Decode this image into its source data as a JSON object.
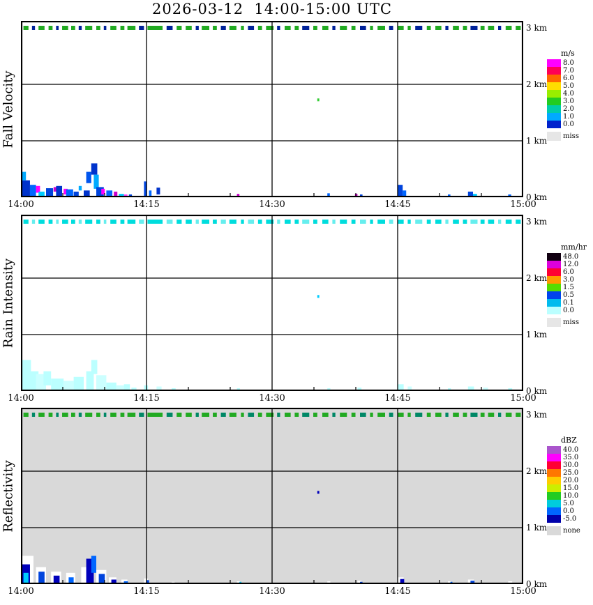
{
  "title": "2026-03-12  14:00-15:00 UTC",
  "axes": {
    "xticks": [
      "14:00",
      "14:15",
      "14:30",
      "14:45",
      "15:00"
    ],
    "yticks": [
      "0 km",
      "1 km",
      "2 km",
      "3 km"
    ],
    "x_range_minutes": 60,
    "y_range_km": [
      0,
      3.12
    ],
    "grid": true
  },
  "strip_segments": [
    [
      0.005,
      0.01,
      0
    ],
    [
      0.022,
      0.006,
      1
    ],
    [
      0.035,
      0.012,
      0
    ],
    [
      0.055,
      0.008,
      0
    ],
    [
      0.07,
      0.005,
      1
    ],
    [
      0.082,
      0.012,
      0
    ],
    [
      0.1,
      0.008,
      0
    ],
    [
      0.115,
      0.006,
      1
    ],
    [
      0.128,
      0.014,
      0
    ],
    [
      0.15,
      0.008,
      0
    ],
    [
      0.165,
      0.005,
      1
    ],
    [
      0.178,
      0.012,
      0
    ],
    [
      0.198,
      0.008,
      0
    ],
    [
      0.212,
      0.016,
      0
    ],
    [
      0.235,
      0.01,
      1
    ],
    [
      0.252,
      0.03,
      0
    ],
    [
      0.29,
      0.012,
      1
    ],
    [
      0.31,
      0.01,
      0
    ],
    [
      0.328,
      0.012,
      0
    ],
    [
      0.348,
      0.006,
      1
    ],
    [
      0.36,
      0.015,
      0
    ],
    [
      0.382,
      0.008,
      0
    ],
    [
      0.398,
      0.01,
      1
    ],
    [
      0.415,
      0.014,
      0
    ],
    [
      0.438,
      0.006,
      0
    ],
    [
      0.452,
      0.012,
      1
    ],
    [
      0.472,
      0.008,
      0
    ],
    [
      0.488,
      0.015,
      0
    ],
    [
      0.51,
      0.006,
      1
    ],
    [
      0.525,
      0.012,
      0
    ],
    [
      0.545,
      0.008,
      0
    ],
    [
      0.56,
      0.014,
      1
    ],
    [
      0.582,
      0.008,
      0
    ],
    [
      0.6,
      0.012,
      0
    ],
    [
      0.62,
      0.006,
      1
    ],
    [
      0.635,
      0.014,
      0
    ],
    [
      0.658,
      0.008,
      0
    ],
    [
      0.675,
      0.012,
      1
    ],
    [
      0.695,
      0.006,
      0
    ],
    [
      0.71,
      0.015,
      0
    ],
    [
      0.733,
      0.008,
      1
    ],
    [
      0.75,
      0.012,
      0
    ],
    [
      0.77,
      0.006,
      0
    ],
    [
      0.785,
      0.014,
      1
    ],
    [
      0.808,
      0.008,
      0
    ],
    [
      0.825,
      0.012,
      0
    ],
    [
      0.845,
      0.006,
      1
    ],
    [
      0.86,
      0.012,
      0
    ],
    [
      0.88,
      0.008,
      0
    ],
    [
      0.895,
      0.014,
      1
    ],
    [
      0.915,
      0.008,
      0
    ],
    [
      0.93,
      0.012,
      0
    ],
    [
      0.95,
      0.006,
      1
    ],
    [
      0.965,
      0.012,
      0
    ],
    [
      0.985,
      0.01,
      0
    ]
  ],
  "chart_data": [
    {
      "type": "heatmap",
      "ylabel": "Fall Velocity",
      "legend_unit": "m/s",
      "legend_position": "right",
      "legend": [
        {
          "label": "8.0",
          "color": "#ff00ff"
        },
        {
          "label": "7.0",
          "color": "#ff0055"
        },
        {
          "label": "6.0",
          "color": "#ff6600"
        },
        {
          "label": "5.0",
          "color": "#ffdd00"
        },
        {
          "label": "4.0",
          "color": "#99ee00"
        },
        {
          "label": "3.0",
          "color": "#22cc22"
        },
        {
          "label": "2.0",
          "color": "#00ccaa"
        },
        {
          "label": "1.0",
          "color": "#00aaff"
        },
        {
          "label": "0.0",
          "color": "#0022cc"
        }
      ],
      "missing": {
        "label": "miss",
        "color": "#e6e6e6"
      },
      "background": "#ffffff",
      "strip_km": 3.0,
      "strip_colors": [
        "#22aa22",
        "#002299"
      ],
      "encoding": {
        "t": "fraction of 14:00-15:00",
        "h": "base height km",
        "w": "width fraction",
        "dh": "depth km",
        "c": "color"
      },
      "echoes": [
        {
          "t": 0.0,
          "h": 0.0,
          "w": 0.018,
          "dh": 0.3,
          "c": "#0033cc"
        },
        {
          "t": 0.0,
          "h": 0.3,
          "w": 0.01,
          "dh": 0.15,
          "c": "#00aaff"
        },
        {
          "t": 0.018,
          "h": 0.0,
          "w": 0.012,
          "dh": 0.22,
          "c": "#0066ff"
        },
        {
          "t": 0.03,
          "h": 0.08,
          "w": 0.008,
          "dh": 0.12,
          "c": "#ff00ff"
        },
        {
          "t": 0.035,
          "h": 0.0,
          "w": 0.012,
          "dh": 0.1,
          "c": "#00ccff"
        },
        {
          "t": 0.05,
          "h": 0.0,
          "w": 0.014,
          "dh": 0.16,
          "c": "#0044dd"
        },
        {
          "t": 0.065,
          "h": 0.1,
          "w": 0.006,
          "dh": 0.08,
          "c": "#cc00cc"
        },
        {
          "t": 0.07,
          "h": 0.0,
          "w": 0.012,
          "dh": 0.2,
          "c": "#0033cc"
        },
        {
          "t": 0.085,
          "h": 0.05,
          "w": 0.008,
          "dh": 0.1,
          "c": "#ff00ff"
        },
        {
          "t": 0.09,
          "h": 0.0,
          "w": 0.014,
          "dh": 0.14,
          "c": "#0066ff"
        },
        {
          "t": 0.105,
          "h": 0.0,
          "w": 0.01,
          "dh": 0.1,
          "c": "#0044dd"
        },
        {
          "t": 0.115,
          "h": 0.12,
          "w": 0.006,
          "dh": 0.08,
          "c": "#00aaff"
        },
        {
          "t": 0.125,
          "h": 0.0,
          "w": 0.012,
          "dh": 0.12,
          "c": "#0033cc"
        },
        {
          "t": 0.13,
          "h": 0.25,
          "w": 0.01,
          "dh": 0.2,
          "c": "#0055ee"
        },
        {
          "t": 0.14,
          "h": 0.4,
          "w": 0.012,
          "dh": 0.2,
          "c": "#0033cc"
        },
        {
          "t": 0.145,
          "h": 0.15,
          "w": 0.01,
          "dh": 0.25,
          "c": "#00aaff"
        },
        {
          "t": 0.15,
          "h": 0.0,
          "w": 0.015,
          "dh": 0.18,
          "c": "#0044dd"
        },
        {
          "t": 0.16,
          "h": 0.05,
          "w": 0.007,
          "dh": 0.1,
          "c": "#ff00ff"
        },
        {
          "t": 0.17,
          "h": 0.0,
          "w": 0.012,
          "dh": 0.12,
          "c": "#0066ff"
        },
        {
          "t": 0.185,
          "h": 0.02,
          "w": 0.007,
          "dh": 0.08,
          "c": "#cc00cc"
        },
        {
          "t": 0.195,
          "h": 0.0,
          "w": 0.01,
          "dh": 0.06,
          "c": "#00ccff"
        },
        {
          "t": 0.205,
          "h": 0.0,
          "w": 0.007,
          "dh": 0.05,
          "c": "#ff44ff"
        },
        {
          "t": 0.215,
          "h": 0.0,
          "w": 0.006,
          "dh": 0.05,
          "c": "#0044dd"
        },
        {
          "t": 0.245,
          "h": 0.0,
          "w": 0.006,
          "dh": 0.28,
          "c": "#0044dd"
        },
        {
          "t": 0.255,
          "h": 0.0,
          "w": 0.005,
          "dh": 0.12,
          "c": "#0066ff"
        },
        {
          "t": 0.27,
          "h": 0.05,
          "w": 0.007,
          "dh": 0.12,
          "c": "#0033cc"
        },
        {
          "t": 0.43,
          "h": 0.0,
          "w": 0.005,
          "dh": 0.06,
          "c": "#cc00cc"
        },
        {
          "t": 0.59,
          "h": 1.7,
          "w": 0.004,
          "dh": 0.05,
          "c": "#33cc33"
        },
        {
          "t": 0.61,
          "h": 0.02,
          "w": 0.005,
          "dh": 0.05,
          "c": "#0066ff"
        },
        {
          "t": 0.665,
          "h": 0.0,
          "w": 0.005,
          "dh": 0.06,
          "c": "#cc00cc"
        },
        {
          "t": 0.675,
          "h": 0.0,
          "w": 0.005,
          "dh": 0.05,
          "c": "#0044dd"
        },
        {
          "t": 0.75,
          "h": 0.0,
          "w": 0.01,
          "dh": 0.22,
          "c": "#0044dd"
        },
        {
          "t": 0.76,
          "h": 0.0,
          "w": 0.007,
          "dh": 0.12,
          "c": "#0066ff"
        },
        {
          "t": 0.85,
          "h": 0.0,
          "w": 0.005,
          "dh": 0.05,
          "c": "#0066ff"
        },
        {
          "t": 0.89,
          "h": 0.0,
          "w": 0.01,
          "dh": 0.1,
          "c": "#0044dd"
        },
        {
          "t": 0.9,
          "h": 0.0,
          "w": 0.008,
          "dh": 0.06,
          "c": "#00ccff"
        },
        {
          "t": 0.97,
          "h": 0.0,
          "w": 0.006,
          "dh": 0.05,
          "c": "#0066ff"
        }
      ]
    },
    {
      "type": "heatmap",
      "ylabel": "Rain Intensity",
      "legend_unit": "mm/hr",
      "legend_position": "right",
      "legend": [
        {
          "label": "48.0",
          "color": "#110011"
        },
        {
          "label": "12.0",
          "color": "#dd00dd"
        },
        {
          "label": "6.0",
          "color": "#ff0033"
        },
        {
          "label": "3.0",
          "color": "#ff9900"
        },
        {
          "label": "1.5",
          "color": "#55dd00"
        },
        {
          "label": "0.5",
          "color": "#0044ee"
        },
        {
          "label": "0.1",
          "color": "#00bbee"
        },
        {
          "label": "0.0",
          "color": "#bbffff"
        }
      ],
      "missing": {
        "label": "miss",
        "color": "#e6e6e6"
      },
      "background": "#ffffff",
      "strip_km": 3.0,
      "strip_colors": [
        "#00dddd",
        "#66eeee"
      ],
      "encoding": {
        "t": "fraction of 14:00-15:00",
        "h": "base height km",
        "w": "width fraction",
        "dh": "depth km",
        "c": "color"
      },
      "echoes": [
        {
          "t": 0.0,
          "h": 0.0,
          "w": 0.02,
          "dh": 0.55,
          "c": "#bbffff"
        },
        {
          "t": 0.0,
          "h": 0.0,
          "w": 0.035,
          "dh": 0.35,
          "c": "#bbffff"
        },
        {
          "t": 0.03,
          "h": 0.0,
          "w": 0.02,
          "dh": 0.3,
          "c": "#ccffff"
        },
        {
          "t": 0.045,
          "h": 0.1,
          "w": 0.015,
          "dh": 0.25,
          "c": "#bbffff"
        },
        {
          "t": 0.06,
          "h": 0.0,
          "w": 0.025,
          "dh": 0.22,
          "c": "#bbffff"
        },
        {
          "t": 0.085,
          "h": 0.0,
          "w": 0.02,
          "dh": 0.18,
          "c": "#ccffff"
        },
        {
          "t": 0.105,
          "h": 0.0,
          "w": 0.02,
          "dh": 0.25,
          "c": "#bbffff"
        },
        {
          "t": 0.13,
          "h": 0.0,
          "w": 0.015,
          "dh": 0.35,
          "c": "#bbffff"
        },
        {
          "t": 0.14,
          "h": 0.3,
          "w": 0.012,
          "dh": 0.25,
          "c": "#bbffff"
        },
        {
          "t": 0.15,
          "h": 0.0,
          "w": 0.02,
          "dh": 0.28,
          "c": "#ccffff"
        },
        {
          "t": 0.17,
          "h": 0.0,
          "w": 0.02,
          "dh": 0.15,
          "c": "#bbffff"
        },
        {
          "t": 0.19,
          "h": 0.0,
          "w": 0.015,
          "dh": 0.1,
          "c": "#ccffff"
        },
        {
          "t": 0.205,
          "h": 0.0,
          "w": 0.012,
          "dh": 0.12,
          "c": "#bbffff"
        },
        {
          "t": 0.22,
          "h": 0.0,
          "w": 0.01,
          "dh": 0.06,
          "c": "#bbffff"
        },
        {
          "t": 0.245,
          "h": 0.0,
          "w": 0.008,
          "dh": 0.1,
          "c": "#bbffff"
        },
        {
          "t": 0.27,
          "h": 0.0,
          "w": 0.01,
          "dh": 0.08,
          "c": "#ccffff"
        },
        {
          "t": 0.3,
          "h": 0.0,
          "w": 0.008,
          "dh": 0.05,
          "c": "#bbffff"
        },
        {
          "t": 0.43,
          "h": 0.0,
          "w": 0.006,
          "dh": 0.05,
          "c": "#bbffff"
        },
        {
          "t": 0.59,
          "h": 1.65,
          "w": 0.004,
          "dh": 0.05,
          "c": "#00ccff"
        },
        {
          "t": 0.61,
          "h": 0.0,
          "w": 0.006,
          "dh": 0.05,
          "c": "#bbffff"
        },
        {
          "t": 0.67,
          "h": 0.0,
          "w": 0.008,
          "dh": 0.06,
          "c": "#bbffff"
        },
        {
          "t": 0.75,
          "h": 0.0,
          "w": 0.012,
          "dh": 0.12,
          "c": "#bbffff"
        },
        {
          "t": 0.77,
          "h": 0.0,
          "w": 0.008,
          "dh": 0.08,
          "c": "#ccffff"
        },
        {
          "t": 0.85,
          "h": 0.0,
          "w": 0.006,
          "dh": 0.05,
          "c": "#bbffff"
        },
        {
          "t": 0.89,
          "h": 0.0,
          "w": 0.012,
          "dh": 0.08,
          "c": "#bbffff"
        },
        {
          "t": 0.92,
          "h": 0.0,
          "w": 0.01,
          "dh": 0.06,
          "c": "#ccffff"
        },
        {
          "t": 0.97,
          "h": 0.0,
          "w": 0.008,
          "dh": 0.05,
          "c": "#bbffff"
        }
      ]
    },
    {
      "type": "heatmap",
      "ylabel": "Reflectivity",
      "legend_unit": "dBZ",
      "legend_position": "right",
      "legend": [
        {
          "label": "40.0",
          "color": "#aa55cc"
        },
        {
          "label": "35.0",
          "color": "#ff00ff"
        },
        {
          "label": "30.0",
          "color": "#ff0033"
        },
        {
          "label": "25.0",
          "color": "#ff7700"
        },
        {
          "label": "20.0",
          "color": "#ffcc00"
        },
        {
          "label": "15.0",
          "color": "#ccee00"
        },
        {
          "label": "10.0",
          "color": "#22cc22"
        },
        {
          "label": "5.0",
          "color": "#00ccdd"
        },
        {
          "label": "0.0",
          "color": "#0066ff"
        },
        {
          "label": "-5.0",
          "color": "#0000aa"
        }
      ],
      "missing": {
        "label": "none",
        "color": "#d9d9d9"
      },
      "background": "#d9d9d9",
      "strip_km": 3.0,
      "strip_colors": [
        "#22aa22",
        "#008866"
      ],
      "encoding": {
        "t": "fraction of 14:00-15:00",
        "h": "base height km",
        "w": "width fraction",
        "dh": "depth km",
        "c": "color"
      },
      "echoes": [
        {
          "t": 0.0,
          "h": 0.0,
          "w": 0.025,
          "dh": 0.5,
          "c": "#ffffff"
        },
        {
          "t": 0.0,
          "h": 0.0,
          "w": 0.018,
          "dh": 0.35,
          "c": "#0000bb"
        },
        {
          "t": 0.005,
          "h": 0.0,
          "w": 0.01,
          "dh": 0.2,
          "c": "#00ccff"
        },
        {
          "t": 0.03,
          "h": 0.0,
          "w": 0.02,
          "dh": 0.3,
          "c": "#ffffff"
        },
        {
          "t": 0.035,
          "h": 0.0,
          "w": 0.012,
          "dh": 0.22,
          "c": "#0044dd"
        },
        {
          "t": 0.06,
          "h": 0.0,
          "w": 0.02,
          "dh": 0.22,
          "c": "#ffffff"
        },
        {
          "t": 0.065,
          "h": 0.0,
          "w": 0.012,
          "dh": 0.15,
          "c": "#0000bb"
        },
        {
          "t": 0.09,
          "h": 0.0,
          "w": 0.018,
          "dh": 0.2,
          "c": "#ffffff"
        },
        {
          "t": 0.095,
          "h": 0.0,
          "w": 0.01,
          "dh": 0.12,
          "c": "#0066ff"
        },
        {
          "t": 0.12,
          "h": 0.0,
          "w": 0.02,
          "dh": 0.3,
          "c": "#ffffff"
        },
        {
          "t": 0.13,
          "h": 0.0,
          "w": 0.015,
          "dh": 0.45,
          "c": "#0000bb"
        },
        {
          "t": 0.14,
          "h": 0.2,
          "w": 0.01,
          "dh": 0.3,
          "c": "#0066ff"
        },
        {
          "t": 0.15,
          "h": 0.0,
          "w": 0.02,
          "dh": 0.25,
          "c": "#ffffff"
        },
        {
          "t": 0.155,
          "h": 0.0,
          "w": 0.012,
          "dh": 0.18,
          "c": "#0044dd"
        },
        {
          "t": 0.175,
          "h": 0.0,
          "w": 0.015,
          "dh": 0.12,
          "c": "#ffffff"
        },
        {
          "t": 0.18,
          "h": 0.0,
          "w": 0.01,
          "dh": 0.08,
          "c": "#0000bb"
        },
        {
          "t": 0.2,
          "h": 0.0,
          "w": 0.012,
          "dh": 0.08,
          "c": "#ffffff"
        },
        {
          "t": 0.205,
          "h": 0.0,
          "w": 0.008,
          "dh": 0.05,
          "c": "#0066ff"
        },
        {
          "t": 0.245,
          "h": 0.0,
          "w": 0.008,
          "dh": 0.1,
          "c": "#ffffff"
        },
        {
          "t": 0.25,
          "h": 0.0,
          "w": 0.005,
          "dh": 0.07,
          "c": "#0044dd"
        },
        {
          "t": 0.3,
          "h": 0.0,
          "w": 0.006,
          "dh": 0.04,
          "c": "#ffffff"
        },
        {
          "t": 0.43,
          "h": 0.0,
          "w": 0.006,
          "dh": 0.05,
          "c": "#ffffff"
        },
        {
          "t": 0.435,
          "h": 0.0,
          "w": 0.004,
          "dh": 0.04,
          "c": "#00ccff"
        },
        {
          "t": 0.59,
          "h": 1.6,
          "w": 0.004,
          "dh": 0.05,
          "c": "#0000bb"
        },
        {
          "t": 0.61,
          "h": 0.0,
          "w": 0.006,
          "dh": 0.05,
          "c": "#ffffff"
        },
        {
          "t": 0.67,
          "h": 0.0,
          "w": 0.008,
          "dh": 0.06,
          "c": "#ffffff"
        },
        {
          "t": 0.675,
          "h": 0.0,
          "w": 0.005,
          "dh": 0.04,
          "c": "#0044dd"
        },
        {
          "t": 0.75,
          "h": 0.0,
          "w": 0.012,
          "dh": 0.12,
          "c": "#ffffff"
        },
        {
          "t": 0.755,
          "h": 0.0,
          "w": 0.008,
          "dh": 0.09,
          "c": "#0000bb"
        },
        {
          "t": 0.85,
          "h": 0.0,
          "w": 0.006,
          "dh": 0.05,
          "c": "#ffffff"
        },
        {
          "t": 0.855,
          "h": 0.0,
          "w": 0.004,
          "dh": 0.04,
          "c": "#0066ff"
        },
        {
          "t": 0.89,
          "h": 0.0,
          "w": 0.012,
          "dh": 0.08,
          "c": "#ffffff"
        },
        {
          "t": 0.895,
          "h": 0.0,
          "w": 0.008,
          "dh": 0.06,
          "c": "#0044dd"
        },
        {
          "t": 0.97,
          "h": 0.0,
          "w": 0.008,
          "dh": 0.05,
          "c": "#ffffff"
        }
      ]
    }
  ]
}
